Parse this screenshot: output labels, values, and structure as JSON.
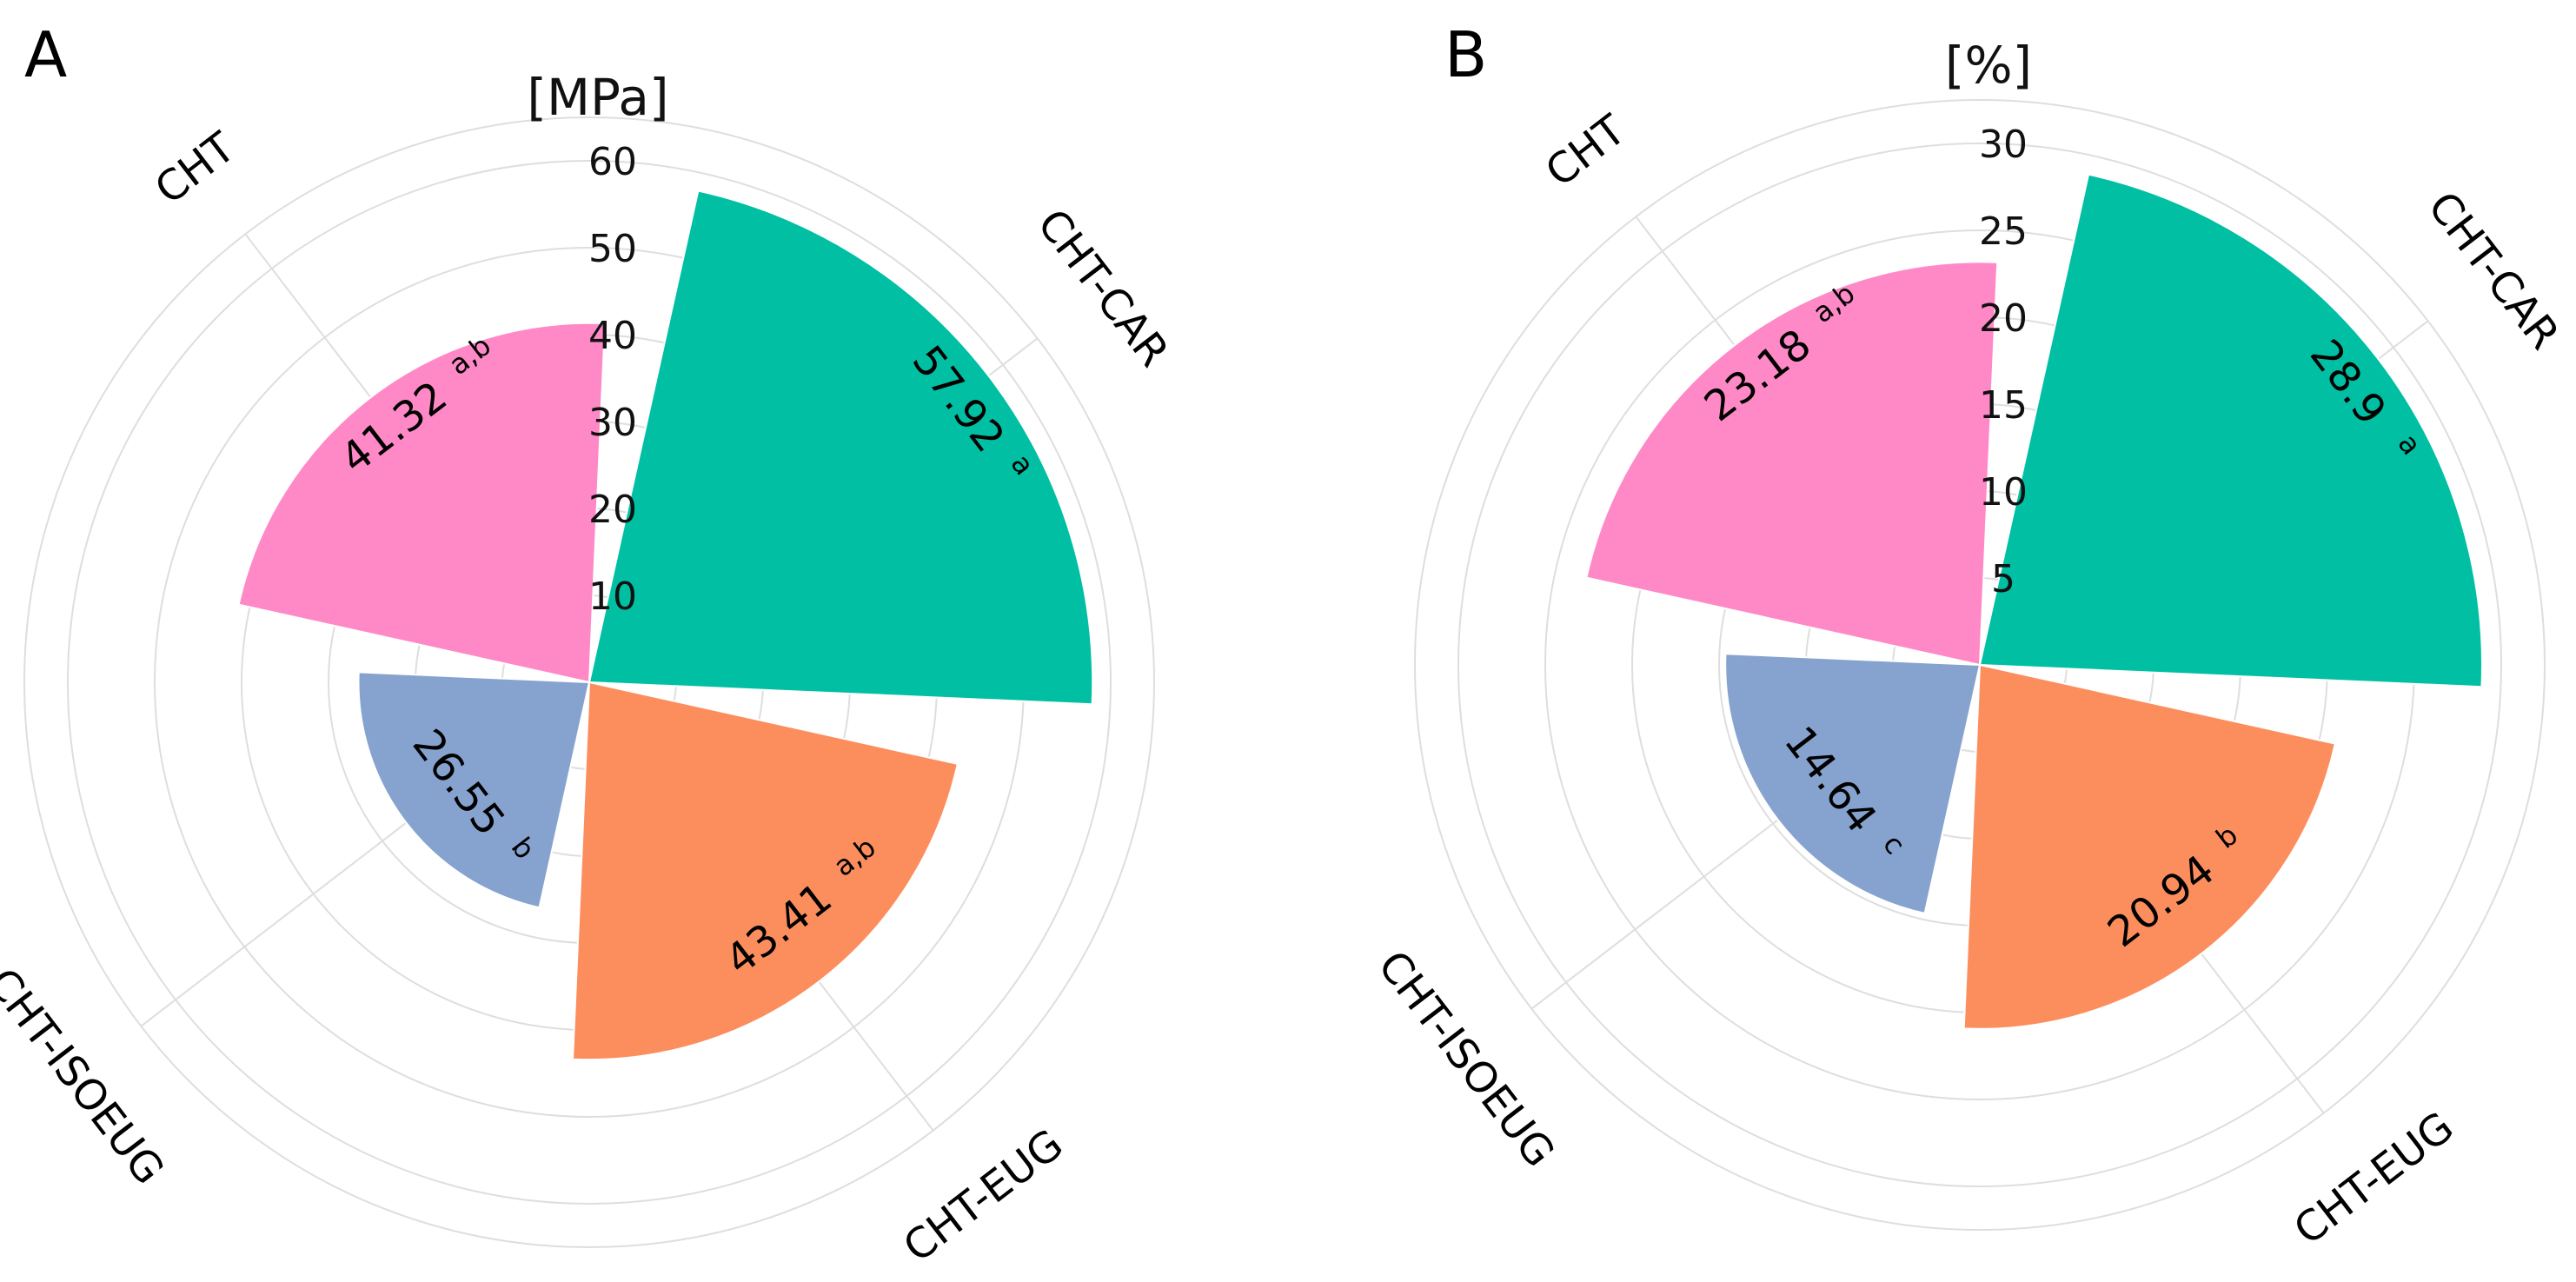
{
  "chart_data": [
    {
      "type": "polar-bar",
      "panel": "A",
      "unit_label": "[MPa]",
      "rmax": 60,
      "ticks": [
        10,
        20,
        30,
        40,
        50,
        60
      ],
      "grid_rings": [
        10,
        20,
        30,
        40,
        50,
        60
      ],
      "slices": [
        {
          "category": "CHT-CAR",
          "value": 57.92,
          "value_label": "57.92",
          "sig": "a",
          "color": "#00BFA3"
        },
        {
          "category": "CHT-EUG",
          "value": 43.41,
          "value_label": "43.41",
          "sig": "a,b",
          "color": "#FC8E5E"
        },
        {
          "category": "CHT-ISOEUG",
          "value": 26.55,
          "value_label": "26.55",
          "sig": "b",
          "color": "#86A3CF"
        },
        {
          "category": "CHT",
          "value": 41.32,
          "value_label": "41.32",
          "sig": "a,b",
          "color": "#FE89C6"
        }
      ]
    },
    {
      "type": "polar-bar",
      "panel": "B",
      "unit_label": "[%]",
      "rmax": 30,
      "ticks": [
        5,
        10,
        15,
        20,
        25,
        30
      ],
      "grid_rings": [
        5,
        10,
        15,
        20,
        25,
        30
      ],
      "slices": [
        {
          "category": "CHT-CAR",
          "value": 28.9,
          "value_label": "28.9",
          "sig": "a",
          "color": "#00BFA3"
        },
        {
          "category": "CHT-EUG",
          "value": 20.94,
          "value_label": "20.94",
          "sig": "b",
          "color": "#FC8E5E"
        },
        {
          "category": "CHT-ISOEUG",
          "value": 14.64,
          "value_label": "14.64",
          "sig": "c",
          "color": "#86A3CF"
        },
        {
          "category": "CHT",
          "value": 23.18,
          "value_label": "23.18",
          "sig": "a,b",
          "color": "#FE89C6"
        }
      ]
    }
  ]
}
